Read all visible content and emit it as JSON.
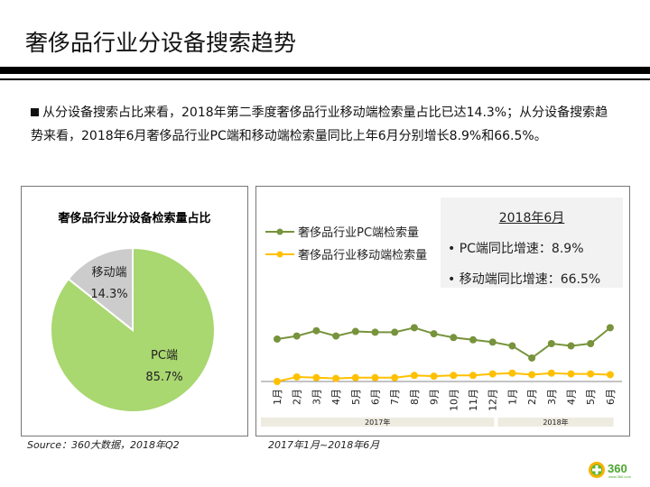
{
  "header": {
    "title": "奢侈品行业分设备搜索趋势"
  },
  "summary": "从分设备搜索占比来看，2018年第二季度奢侈品行业移动端检索量占比已达14.3%；从分设备搜索趋势来看，2018年6月奢侈品行业PC端和移动端检索量同比上年6月分别增长8.9%和66.5%。",
  "inset": {
    "title": "2018年6月",
    "pc": "• PC端同比增速：8.9%",
    "mobile": "• 移动端同比增速：66.5%"
  },
  "sources": {
    "left": "Source：360大数据，2018年Q2",
    "right": "2017年1月~2018年6月"
  },
  "logo": "360 www.360.com",
  "chart_data": [
    {
      "type": "pie",
      "title": "奢侈品行业分设备检索量占比",
      "slices": [
        {
          "label": "PC端",
          "value": 85.7,
          "value_label": "85.7%",
          "color": "#a9d770"
        },
        {
          "label": "移动端",
          "value": 14.3,
          "value_label": "14.3%",
          "color": "#cccccc"
        }
      ]
    },
    {
      "type": "line",
      "categories": [
        "1月",
        "2月",
        "3月",
        "4月",
        "5月",
        "6月",
        "7月",
        "8月",
        "9月",
        "10月",
        "11月",
        "12月",
        "1月",
        "2月",
        "3月",
        "4月",
        "5月",
        "6月"
      ],
      "groups": [
        {
          "label": "2017年",
          "count": 12
        },
        {
          "label": "2018年",
          "count": 6
        }
      ],
      "y_axis_labels": "none",
      "series": [
        {
          "name": "奢侈品行业PC端检索量",
          "color": "#77933c",
          "values": [
            56,
            60,
            67,
            60,
            66,
            65,
            65,
            71,
            63,
            58,
            55,
            52,
            47,
            31,
            50,
            47,
            50,
            71
          ]
        },
        {
          "name": "奢侈品行业移动端检索量",
          "color": "#ffc000",
          "values": [
            0,
            6,
            5,
            4,
            5,
            5,
            5,
            8,
            7,
            8,
            8,
            10,
            11,
            9,
            11,
            10,
            10,
            9
          ]
        }
      ]
    }
  ]
}
